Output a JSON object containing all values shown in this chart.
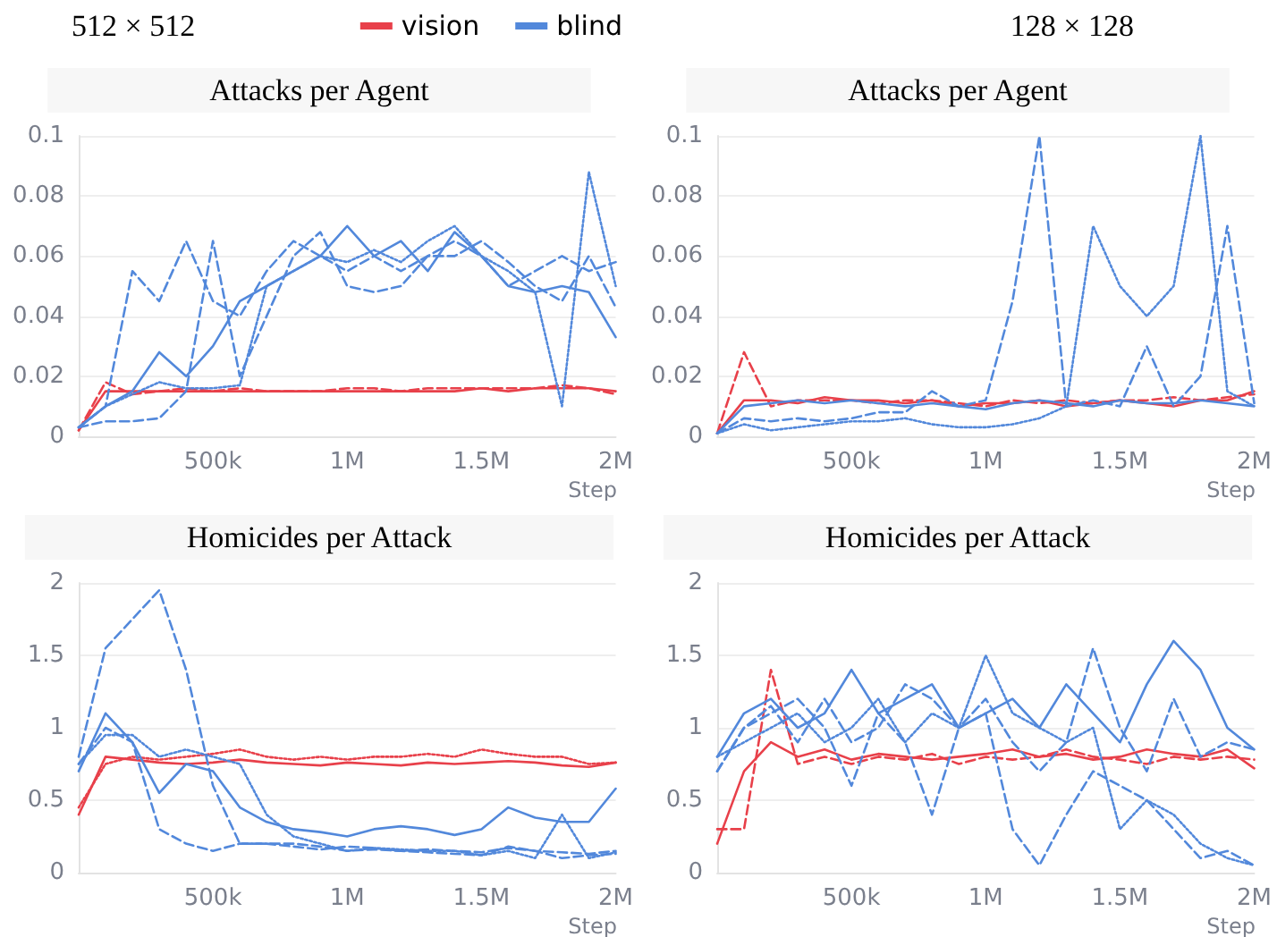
{
  "chart_data": [
    {
      "type": "line",
      "title": "Attacks per Agent",
      "xlabel": "Step",
      "annotations": [
        "512 × 512"
      ],
      "legend": "top right",
      "grid": "y",
      "marker": "none",
      "x": [
        0,
        100000,
        200000,
        300000,
        400000,
        500000,
        600000,
        700000,
        800000,
        900000,
        1000000,
        1100000,
        1200000,
        1300000,
        1400000,
        1500000,
        1600000,
        1700000,
        1800000,
        1900000,
        2000000
      ],
      "xlim": [
        0,
        2000000
      ],
      "xticks": [
        {
          "value": 500000,
          "label": "500k"
        },
        {
          "value": 1000000,
          "label": "1M"
        },
        {
          "value": 1500000,
          "label": "1.5M"
        },
        {
          "value": 2000000,
          "label": "2M"
        }
      ],
      "ylim": [
        0,
        0.1
      ],
      "yticks": [
        0,
        0.02,
        0.04,
        0.06,
        0.08,
        0.1
      ],
      "series": [
        {
          "name": "vision",
          "color": "#e8404a",
          "line_style": "solid",
          "values": [
            0.002,
            0.015,
            0.015,
            0.015,
            0.015,
            0.015,
            0.015,
            0.015,
            0.015,
            0.015,
            0.015,
            0.015,
            0.015,
            0.015,
            0.015,
            0.016,
            0.015,
            0.016,
            0.016,
            0.016,
            0.015
          ]
        },
        {
          "color": "#e8404a",
          "line_style": "dashed",
          "values": [
            0.002,
            0.018,
            0.014,
            0.015,
            0.016,
            0.015,
            0.016,
            0.015,
            0.015,
            0.015,
            0.016,
            0.016,
            0.015,
            0.016,
            0.016,
            0.016,
            0.016,
            0.016,
            0.017,
            0.016,
            0.014
          ]
        },
        {
          "name": "blind",
          "color": "#5288db",
          "line_style": "solid",
          "values": [
            0.003,
            0.01,
            0.015,
            0.028,
            0.02,
            0.03,
            0.045,
            0.05,
            0.055,
            0.06,
            0.07,
            0.06,
            0.065,
            0.055,
            0.068,
            0.06,
            0.05,
            0.048,
            0.05,
            0.048,
            0.033
          ]
        },
        {
          "color": "#5288db",
          "line_style": "dashed",
          "values": [
            0.003,
            0.01,
            0.055,
            0.045,
            0.065,
            0.045,
            0.04,
            0.055,
            0.065,
            0.06,
            0.055,
            0.06,
            0.055,
            0.06,
            0.065,
            0.06,
            0.05,
            0.055,
            0.06,
            0.055,
            0.058
          ]
        },
        {
          "color": "#5288db",
          "line_style": "dotted",
          "values": [
            0.003,
            0.01,
            0.014,
            0.018,
            0.016,
            0.016,
            0.017,
            0.05,
            0.055,
            0.06,
            0.058,
            0.062,
            0.058,
            0.065,
            0.07,
            0.06,
            0.055,
            0.048,
            0.01,
            0.088,
            0.05
          ]
        },
        {
          "color": "#5288db",
          "line_style": "dashed",
          "values": [
            0.003,
            0.005,
            0.005,
            0.006,
            0.015,
            0.065,
            0.02,
            0.04,
            0.06,
            0.068,
            0.05,
            0.048,
            0.05,
            0.06,
            0.06,
            0.065,
            0.058,
            0.05,
            0.045,
            0.06,
            0.043
          ]
        }
      ]
    },
    {
      "type": "line",
      "title": "Attacks per Agent",
      "xlabel": "Step",
      "annotations": [
        "128 × 128"
      ],
      "grid": "y",
      "marker": "none",
      "x": [
        0,
        100000,
        200000,
        300000,
        400000,
        500000,
        600000,
        700000,
        800000,
        900000,
        1000000,
        1100000,
        1200000,
        1300000,
        1400000,
        1500000,
        1600000,
        1700000,
        1800000,
        1900000,
        2000000
      ],
      "xlim": [
        0,
        2000000
      ],
      "xticks": [
        {
          "value": 500000,
          "label": "500k"
        },
        {
          "value": 1000000,
          "label": "1M"
        },
        {
          "value": 1500000,
          "label": "1.5M"
        },
        {
          "value": 2000000,
          "label": "2M"
        }
      ],
      "ylim": [
        0,
        0.1
      ],
      "yticks": [
        0,
        0.02,
        0.04,
        0.06,
        0.08,
        0.1
      ],
      "series": [
        {
          "color": "#e8404a",
          "line_style": "dashed",
          "values": [
            0.001,
            0.028,
            0.01,
            0.012,
            0.012,
            0.012,
            0.011,
            0.012,
            0.012,
            0.011,
            0.01,
            0.012,
            0.011,
            0.012,
            0.011,
            0.012,
            0.012,
            0.013,
            0.012,
            0.013,
            0.014
          ]
        },
        {
          "color": "#e8404a",
          "line_style": "solid",
          "values": [
            0.001,
            0.012,
            0.012,
            0.011,
            0.013,
            0.012,
            0.012,
            0.011,
            0.012,
            0.01,
            0.011,
            0.011,
            0.012,
            0.01,
            0.011,
            0.012,
            0.011,
            0.01,
            0.012,
            0.012,
            0.015
          ]
        },
        {
          "color": "#5288db",
          "line_style": "solid",
          "values": [
            0.001,
            0.01,
            0.011,
            0.012,
            0.011,
            0.012,
            0.011,
            0.01,
            0.011,
            0.01,
            0.009,
            0.011,
            0.012,
            0.011,
            0.01,
            0.012,
            0.011,
            0.011,
            0.012,
            0.011,
            0.01
          ]
        },
        {
          "color": "#5288db",
          "line_style": "dashed",
          "values": [
            0.001,
            0.006,
            0.005,
            0.006,
            0.005,
            0.006,
            0.008,
            0.008,
            0.015,
            0.01,
            0.012,
            0.045,
            0.1,
            0.01,
            0.012,
            0.01,
            0.03,
            0.01,
            0.02,
            0.07,
            0.011
          ]
        },
        {
          "color": "#5288db",
          "line_style": "dotted",
          "values": [
            0.001,
            0.004,
            0.002,
            0.003,
            0.004,
            0.005,
            0.005,
            0.006,
            0.004,
            0.003,
            0.003,
            0.004,
            0.006,
            0.01,
            0.07,
            0.05,
            0.04,
            0.05,
            0.1,
            0.015,
            0.01
          ]
        }
      ]
    },
    {
      "type": "line",
      "title": "Homicides per Attack",
      "xlabel": "Step",
      "grid": "y",
      "marker": "none",
      "x": [
        0,
        100000,
        200000,
        300000,
        400000,
        500000,
        600000,
        700000,
        800000,
        900000,
        1000000,
        1100000,
        1200000,
        1300000,
        1400000,
        1500000,
        1600000,
        1700000,
        1800000,
        1900000,
        2000000
      ],
      "xlim": [
        0,
        2000000
      ],
      "xticks": [
        {
          "value": 500000,
          "label": "500k"
        },
        {
          "value": 1000000,
          "label": "1M"
        },
        {
          "value": 1500000,
          "label": "1.5M"
        },
        {
          "value": 2000000,
          "label": "2M"
        }
      ],
      "ylim": [
        0,
        2
      ],
      "yticks": [
        0,
        0.5,
        1,
        1.5,
        2
      ],
      "series": [
        {
          "color": "#e8404a",
          "line_style": "solid",
          "values": [
            0.4,
            0.8,
            0.78,
            0.76,
            0.75,
            0.76,
            0.78,
            0.76,
            0.75,
            0.74,
            0.76,
            0.75,
            0.74,
            0.76,
            0.75,
            0.76,
            0.77,
            0.76,
            0.74,
            0.73,
            0.76
          ]
        },
        {
          "color": "#e8404a",
          "line_style": "dotted",
          "values": [
            0.45,
            0.75,
            0.8,
            0.78,
            0.8,
            0.82,
            0.85,
            0.8,
            0.78,
            0.8,
            0.78,
            0.8,
            0.8,
            0.82,
            0.8,
            0.85,
            0.82,
            0.8,
            0.8,
            0.75,
            0.76
          ]
        },
        {
          "color": "#5288db",
          "line_style": "solid",
          "values": [
            0.7,
            1.1,
            0.9,
            0.55,
            0.75,
            0.7,
            0.45,
            0.35,
            0.3,
            0.28,
            0.25,
            0.3,
            0.32,
            0.3,
            0.26,
            0.3,
            0.45,
            0.38,
            0.35,
            0.35,
            0.58
          ]
        },
        {
          "color": "#5288db",
          "line_style": "dashed",
          "values": [
            0.75,
            1.0,
            0.9,
            0.3,
            0.2,
            0.15,
            0.2,
            0.2,
            0.18,
            0.16,
            0.18,
            0.17,
            0.15,
            0.16,
            0.15,
            0.14,
            0.17,
            0.15,
            0.14,
            0.13,
            0.15
          ]
        },
        {
          "color": "#5288db",
          "line_style": "dashed",
          "values": [
            0.8,
            1.55,
            1.75,
            1.95,
            1.4,
            0.6,
            0.2,
            0.2,
            0.2,
            0.18,
            0.15,
            0.16,
            0.15,
            0.14,
            0.13,
            0.12,
            0.18,
            0.15,
            0.1,
            0.12,
            0.13
          ]
        },
        {
          "color": "#5288db",
          "line_style": "dotted",
          "values": [
            0.75,
            0.95,
            0.95,
            0.8,
            0.85,
            0.8,
            0.75,
            0.4,
            0.25,
            0.2,
            0.15,
            0.17,
            0.16,
            0.15,
            0.15,
            0.12,
            0.15,
            0.1,
            0.4,
            0.1,
            0.14
          ]
        }
      ]
    },
    {
      "type": "line",
      "title": "Homicides per Attack",
      "xlabel": "Step",
      "grid": "y",
      "marker": "none",
      "x": [
        0,
        100000,
        200000,
        300000,
        400000,
        500000,
        600000,
        700000,
        800000,
        900000,
        1000000,
        1100000,
        1200000,
        1300000,
        1400000,
        1500000,
        1600000,
        1700000,
        1800000,
        1900000,
        2000000
      ],
      "xlim": [
        0,
        2000000
      ],
      "xticks": [
        {
          "value": 500000,
          "label": "500k"
        },
        {
          "value": 1000000,
          "label": "1M"
        },
        {
          "value": 1500000,
          "label": "1.5M"
        },
        {
          "value": 2000000,
          "label": "2M"
        }
      ],
      "ylim": [
        0,
        2
      ],
      "yticks": [
        0,
        0.5,
        1,
        1.5,
        2
      ],
      "series": [
        {
          "color": "#e8404a",
          "line_style": "solid",
          "values": [
            0.2,
            0.7,
            0.9,
            0.8,
            0.85,
            0.78,
            0.82,
            0.8,
            0.78,
            0.8,
            0.82,
            0.85,
            0.8,
            0.82,
            0.78,
            0.8,
            0.85,
            0.82,
            0.8,
            0.85,
            0.72
          ]
        },
        {
          "color": "#e8404a",
          "line_style": "dashed",
          "values": [
            0.3,
            0.3,
            1.4,
            0.75,
            0.8,
            0.75,
            0.8,
            0.78,
            0.82,
            0.75,
            0.8,
            0.78,
            0.8,
            0.85,
            0.8,
            0.78,
            0.75,
            0.8,
            0.78,
            0.8,
            0.78
          ]
        },
        {
          "color": "#5288db",
          "line_style": "solid",
          "values": [
            0.8,
            1.1,
            1.2,
            1.0,
            1.1,
            1.4,
            1.1,
            1.2,
            1.3,
            1.0,
            1.1,
            1.2,
            1.0,
            1.3,
            1.1,
            0.9,
            1.3,
            1.6,
            1.4,
            1.0,
            0.85
          ]
        },
        {
          "color": "#5288db",
          "line_style": "dashed",
          "values": [
            0.7,
            1.0,
            1.1,
            1.2,
            1.0,
            0.6,
            1.1,
            0.9,
            0.4,
            1.0,
            1.1,
            0.3,
            0.05,
            0.4,
            0.7,
            0.6,
            0.5,
            0.3,
            0.1,
            0.15,
            0.05
          ]
        },
        {
          "color": "#5288db",
          "line_style": "dotted",
          "values": [
            0.8,
            0.9,
            1.0,
            1.1,
            0.9,
            1.0,
            1.2,
            0.9,
            1.1,
            1.0,
            1.5,
            1.1,
            1.0,
            0.9,
            1.0,
            0.3,
            0.5,
            0.4,
            0.2,
            0.1,
            0.05
          ]
        },
        {
          "color": "#5288db",
          "line_style": "dashed",
          "values": [
            0.7,
            1.0,
            1.15,
            0.9,
            1.2,
            0.9,
            1.0,
            1.3,
            1.2,
            1.0,
            1.2,
            0.9,
            0.7,
            0.9,
            1.55,
            1.0,
            0.7,
            1.2,
            0.8,
            0.9,
            0.85
          ]
        }
      ]
    }
  ]
}
